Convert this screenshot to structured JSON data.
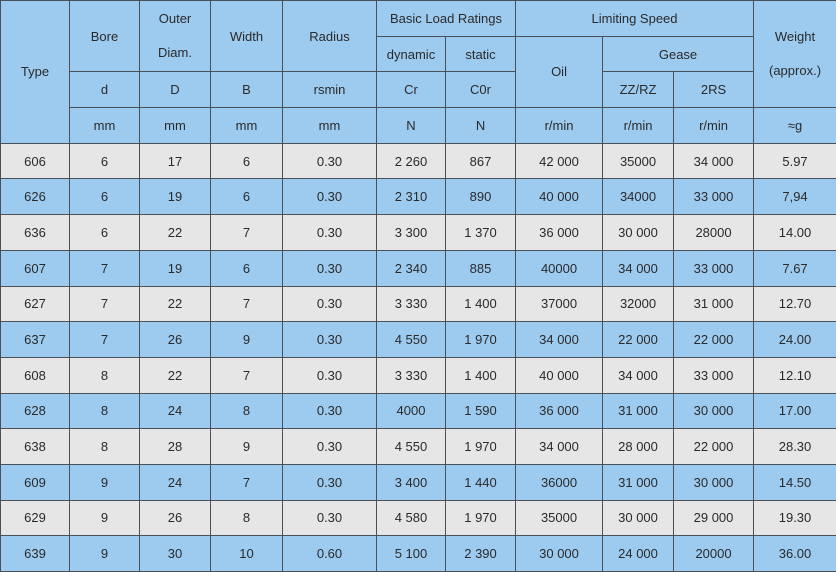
{
  "colors": {
    "header_bg": "#9dcbf0",
    "row_gray": "#e6e6e6",
    "row_blue": "#9dcbf0",
    "border": "#4a5058"
  },
  "header": {
    "type": "Type",
    "bore": "Bore",
    "outer_diam_1": "Outer",
    "outer_diam_2": "Diam.",
    "width": "Width",
    "radius": "Radius",
    "basic_load_ratings": "Basic Load Ratings",
    "dynamic": "dynamic",
    "static": "static",
    "limiting_speed": "Limiting Speed",
    "oil": "Oil",
    "grease": "Gease",
    "weight_1": "Weight",
    "weight_2": "(approx.)",
    "symbols": [
      "d",
      "D",
      "B",
      "rsmin",
      "Cr",
      "C0r",
      "ZZ/RZ",
      "2RS"
    ],
    "units": [
      "mm",
      "mm",
      "mm",
      "mm",
      "N",
      "N",
      "r/min",
      "r/min",
      "r/min",
      "≈g"
    ]
  },
  "rows": [
    [
      "606",
      "6",
      "17",
      "6",
      "0.30",
      "2 260",
      "867",
      "42 000",
      "35000",
      "34 000",
      "5.97"
    ],
    [
      "626",
      "6",
      "19",
      "6",
      "0.30",
      "2 310",
      "890",
      "40 000",
      "34000",
      "33 000",
      "7,94"
    ],
    [
      "636",
      "6",
      "22",
      "7",
      "0.30",
      "3 300",
      "1 370",
      "36 000",
      "30 000",
      "28000",
      "14.00"
    ],
    [
      "607",
      "7",
      "19",
      "6",
      "0.30",
      "2 340",
      "885",
      "40000",
      "34 000",
      "33 000",
      "7.67"
    ],
    [
      "627",
      "7",
      "22",
      "7",
      "0.30",
      "3 330",
      "1 400",
      "37000",
      "32000",
      "31 000",
      "12.70"
    ],
    [
      "637",
      "7",
      "26",
      "9",
      "0.30",
      "4 550",
      "1 970",
      "34 000",
      "22 000",
      "22 000",
      "24.00"
    ],
    [
      "608",
      "8",
      "22",
      "7",
      "0.30",
      "3 330",
      "1 400",
      "40 000",
      "34 000",
      "33 000",
      "12.10"
    ],
    [
      "628",
      "8",
      "24",
      "8",
      "0.30",
      "4000",
      "1 590",
      "36 000",
      "31 000",
      "30 000",
      "17.00"
    ],
    [
      "638",
      "8",
      "28",
      "9",
      "0.30",
      "4 550",
      "1 970",
      "34 000",
      "28 000",
      "22 000",
      "28.30"
    ],
    [
      "609",
      "9",
      "24",
      "7",
      "0.30",
      "3 400",
      "1 440",
      "36000",
      "31 000",
      "30 000",
      "14.50"
    ],
    [
      "629",
      "9",
      "26",
      "8",
      "0.30",
      "4 580",
      "1 970",
      "35000",
      "30 000",
      "29 000",
      "19.30"
    ],
    [
      "639",
      "9",
      "30",
      "10",
      "0.60",
      "5 100",
      "2 390",
      "30 000",
      "24 000",
      "20000",
      "36.00"
    ]
  ]
}
